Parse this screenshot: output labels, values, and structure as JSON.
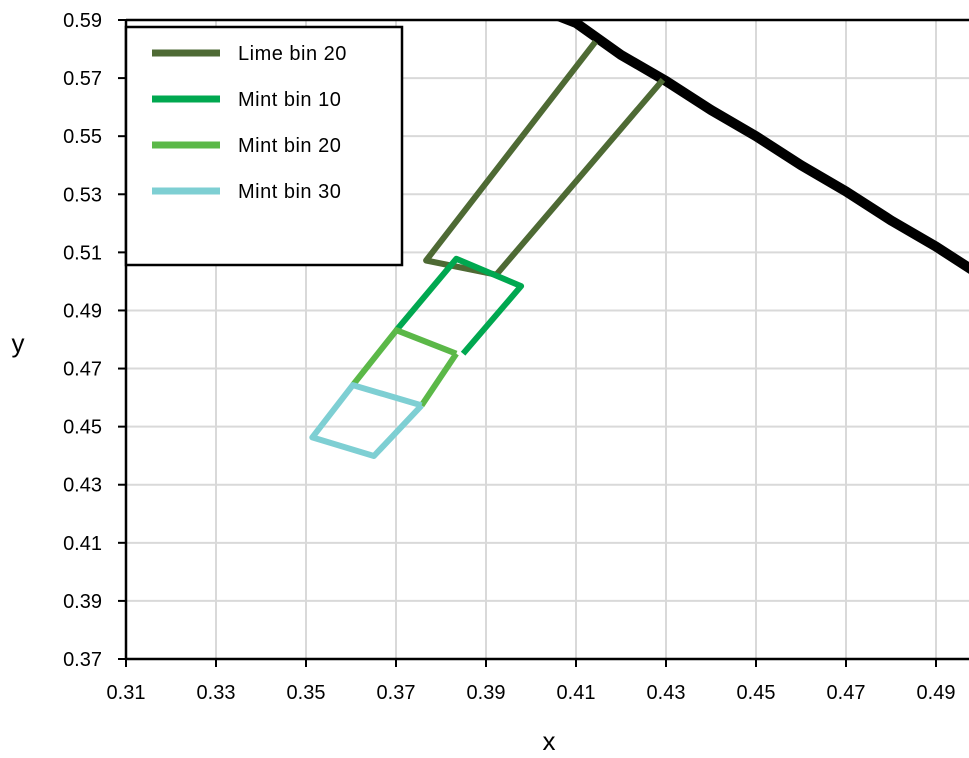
{
  "chart_data": {
    "type": "line",
    "title": "",
    "xlabel": "x",
    "ylabel": "y",
    "xlim": [
      0.31,
      0.498
    ],
    "ylim": [
      0.37,
      0.59
    ],
    "xticks": [
      "0.31",
      "0.33",
      "0.35",
      "0.37",
      "0.39",
      "0.41",
      "0.43",
      "0.45",
      "0.47",
      "0.49"
    ],
    "yticks": [
      "0.59",
      "0.57",
      "0.55",
      "0.53",
      "0.51",
      "0.49",
      "0.47",
      "0.45",
      "0.43",
      "0.41",
      "0.39",
      "0.37"
    ],
    "grid": true,
    "legend_position": "top-left",
    "boundary": {
      "color": "#000000",
      "points": [
        [
          0.405,
          0.592
        ],
        [
          0.41,
          0.589
        ],
        [
          0.42,
          0.578
        ],
        [
          0.43,
          0.569
        ],
        [
          0.44,
          0.559
        ],
        [
          0.45,
          0.55
        ],
        [
          0.46,
          0.54
        ],
        [
          0.47,
          0.531
        ],
        [
          0.48,
          0.521
        ],
        [
          0.49,
          0.512
        ],
        [
          0.498,
          0.504
        ]
      ]
    },
    "series": [
      {
        "name": "Lime bin 20",
        "color": "#4E6A34",
        "segments": [
          [
            [
              0.4143,
              0.5825
            ],
            [
              0.3767,
              0.5072
            ],
            [
              0.3923,
              0.5023
            ],
            [
              0.4293,
              0.5694
            ]
          ]
        ]
      },
      {
        "name": "Mint bin 10",
        "color": "#00A850",
        "segments": [
          [
            [
              0.3701,
              0.4832
            ],
            [
              0.3834,
              0.5078
            ],
            [
              0.3978,
              0.4984
            ],
            [
              0.3849,
              0.4751
            ]
          ]
        ]
      },
      {
        "name": "Mint bin 20",
        "color": "#5BB848",
        "segments": [
          [
            [
              0.3834,
              0.4751
            ],
            [
              0.3701,
              0.4832
            ],
            [
              0.3604,
              0.4643
            ]
          ],
          [
            [
              0.3834,
              0.4751
            ],
            [
              0.3757,
              0.4573
            ]
          ]
        ]
      },
      {
        "name": "Mint bin 30",
        "color": "#7ECFD3",
        "segments": [
          [
            [
              0.3757,
              0.4573
            ],
            [
              0.3604,
              0.4643
            ],
            [
              0.3514,
              0.4463
            ],
            [
              0.3651,
              0.4399
            ],
            [
              0.3757,
              0.4573
            ]
          ]
        ]
      }
    ]
  }
}
